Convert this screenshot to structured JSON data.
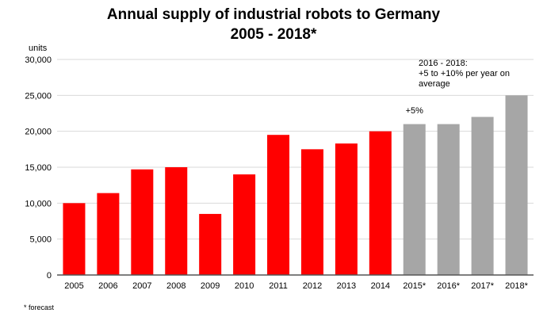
{
  "chart_data": {
    "type": "bar",
    "title": "Annual supply of industrial robots to Germany",
    "subtitle": "2005 - 2018*",
    "ylabel": "units",
    "xlabel": "",
    "ylim": [
      0,
      30000
    ],
    "yticks": [
      "0",
      "5,000",
      "10,000",
      "15,000",
      "20,000",
      "25,000",
      "30,000"
    ],
    "grid": true,
    "categories": [
      "2005",
      "2006",
      "2007",
      "2008",
      "2009",
      "2010",
      "2011",
      "2012",
      "2013",
      "2014",
      "2015*",
      "2016*",
      "2017*",
      "2018*"
    ],
    "values": [
      10000,
      11400,
      14700,
      15000,
      8500,
      14000,
      19500,
      17500,
      18300,
      20000,
      21000,
      21000,
      22000,
      25000
    ],
    "bar_colors": [
      "#ff0000",
      "#ff0000",
      "#ff0000",
      "#ff0000",
      "#ff0000",
      "#ff0000",
      "#ff0000",
      "#ff0000",
      "#ff0000",
      "#ff0000",
      "#a6a6a6",
      "#a6a6a6",
      "#a6a6a6",
      "#a6a6a6"
    ],
    "annotations": [
      {
        "text": "+5%",
        "category": "2015*"
      },
      {
        "lines": [
          "2016 - 2018:",
          "+5 to +10% per year on",
          "average"
        ],
        "category": "2016*"
      }
    ],
    "footnote": "* forecast"
  }
}
